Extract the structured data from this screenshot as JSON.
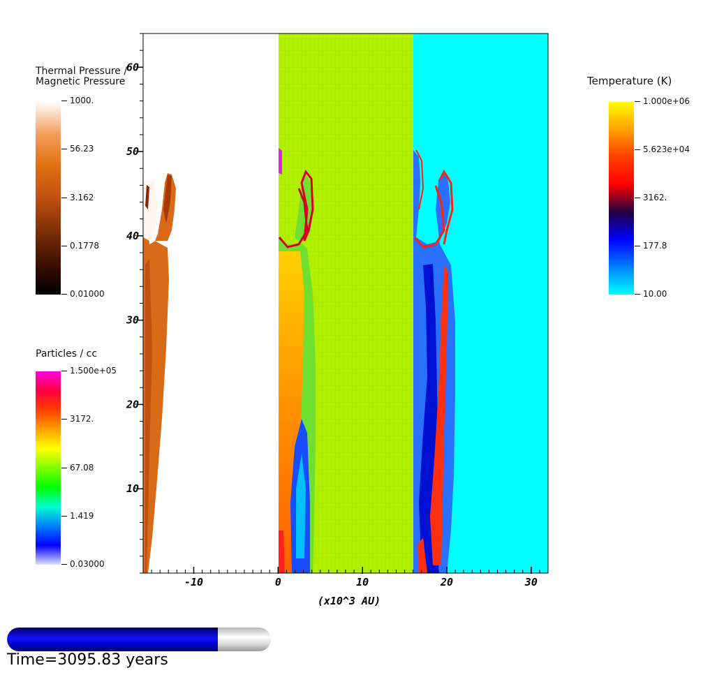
{
  "chart_data": {
    "type": "heatmap",
    "panels": [
      {
        "quantity": "Thermal Pressure / Magnetic Pressure",
        "x_range": [
          -16,
          0
        ],
        "background": "#ffffff"
      },
      {
        "quantity": "Particles / cc",
        "x_range": [
          0,
          16
        ],
        "background": "#b0f000"
      },
      {
        "quantity": "Temperature (K)",
        "x_range": [
          16,
          32
        ],
        "background": "#00ffff"
      }
    ],
    "xlabel": "(x10^3 AU)",
    "ylabel": "",
    "xlim": [
      -16,
      32
    ],
    "ylim": [
      0,
      64
    ],
    "x_ticks": [
      -10,
      0,
      10,
      20,
      30
    ],
    "y_ticks": [
      10,
      20,
      30,
      40,
      50,
      60
    ],
    "grid": false
  },
  "colorbars": {
    "pressure": {
      "title_line1": "Thermal Pressure /",
      "title_line2": "Magnetic Pressure",
      "ticks": [
        "1000.",
        "56.23",
        "3.162",
        "0.1778",
        "0.01000"
      ],
      "colors": [
        "#ffffff",
        "#f5a060",
        "#e07010",
        "#c05010",
        "#803008",
        "#401000",
        "#000000"
      ]
    },
    "density": {
      "title": "Particles / cc",
      "ticks": [
        "1.500e+05",
        "3172.",
        "67.08",
        "1.419",
        "0.03000"
      ],
      "colors": [
        "#ff00e0",
        "#ff0040",
        "#ff4000",
        "#ffa000",
        "#ffff00",
        "#80ff00",
        "#00ff00",
        "#00ffd0",
        "#0080ff",
        "#0000ff",
        "#e0e0ff"
      ]
    },
    "temperature": {
      "title": "Temperature (K)",
      "ticks": [
        "1.000e+06",
        "5.623e+04",
        "3162.",
        "177.8",
        "10.00"
      ],
      "colors": [
        "#ffff00",
        "#ffa000",
        "#ff4000",
        "#ff0000",
        "#200040",
        "#0000ff",
        "#0080ff",
        "#00ffff"
      ]
    }
  },
  "progress": {
    "fraction": 0.8,
    "time_label": "Time=3095.83 years"
  }
}
